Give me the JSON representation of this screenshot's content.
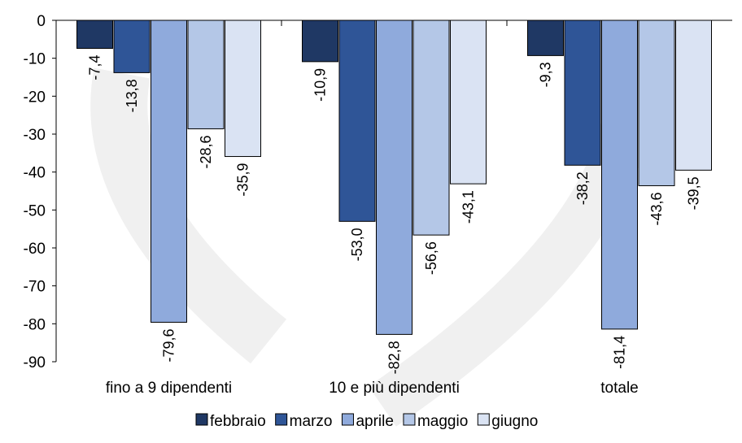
{
  "chart_data": {
    "type": "bar",
    "categories": [
      "fino a 9 dipendenti",
      "10 e più dipendenti",
      "totale"
    ],
    "series": [
      {
        "name": "febbraio",
        "color": "#1f3864",
        "values": [
          -7.4,
          -10.9,
          -9.3
        ],
        "labels": [
          "-7,4",
          "-10,9",
          "-9,3"
        ]
      },
      {
        "name": "marzo",
        "color": "#2f5597",
        "values": [
          -13.8,
          -53.0,
          -38.2
        ],
        "labels": [
          "-13,8",
          "-53,0",
          "-38,2"
        ]
      },
      {
        "name": "aprile",
        "color": "#8faadc",
        "values": [
          -79.6,
          -82.8,
          -81.4
        ],
        "labels": [
          "-79,6",
          "-82,8",
          "-81,4"
        ]
      },
      {
        "name": "maggio",
        "color": "#b4c7e7",
        "values": [
          -28.6,
          -56.6,
          -43.6
        ],
        "labels": [
          "-28,6",
          "-56,6",
          "-43,6"
        ]
      },
      {
        "name": "giugno",
        "color": "#dae3f3",
        "values": [
          -35.9,
          -43.1,
          -39.5
        ],
        "labels": [
          "-35,9",
          "-43,1",
          "-39,5"
        ]
      }
    ],
    "yticks": [
      "0",
      "-10",
      "-20",
      "-30",
      "-40",
      "-50",
      "-60",
      "-70",
      "-80",
      "-90"
    ],
    "ylim": [
      -90,
      0
    ],
    "grid": false,
    "legend_position": "bottom"
  }
}
